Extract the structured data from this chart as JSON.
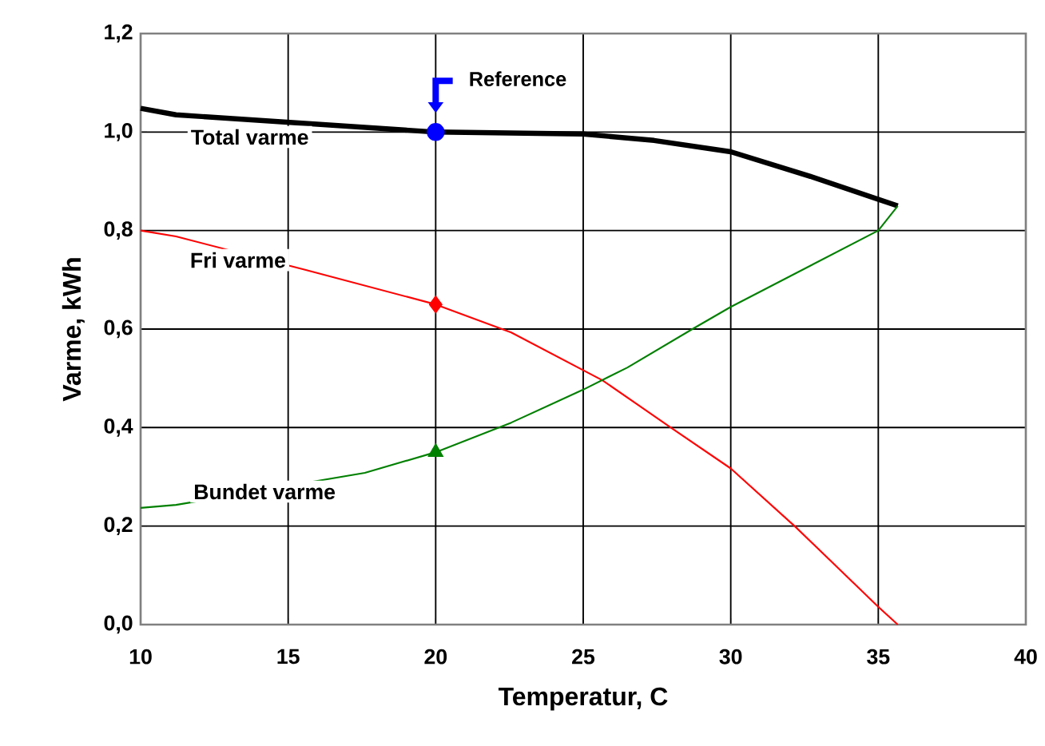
{
  "chart_data": {
    "type": "line",
    "xlabel": "Temperatur, C",
    "ylabel": "Varme, kWh",
    "xlim": [
      10,
      40
    ],
    "xticks": [
      10,
      15,
      20,
      25,
      30,
      35,
      40
    ],
    "ylim": [
      0,
      1.2
    ],
    "yticks": [
      {
        "value": 0,
        "label": "0,0"
      },
      {
        "value": 0.2,
        "label": "0,2"
      },
      {
        "value": 0.4,
        "label": "0,4"
      },
      {
        "value": 0.6,
        "label": "0,6"
      },
      {
        "value": 0.8,
        "label": "0,8"
      },
      {
        "value": 1.0,
        "label": "1,0"
      },
      {
        "value": 1.2,
        "label": "1,2"
      }
    ],
    "grid": true,
    "marker": "none",
    "line_style": "solid",
    "series": [
      {
        "name": "Total varme",
        "color": "#000000",
        "x": [
          10,
          11.2,
          15,
          20,
          25,
          27.4,
          30,
          32.7,
          35.66
        ],
        "values": [
          1.048,
          1.035,
          null,
          1.0,
          0.996,
          0.983,
          0.96,
          0.91,
          0.85
        ]
      },
      {
        "name": "Fri varme",
        "color": "#ff0000",
        "x": [
          10,
          11.2,
          15.6,
          20,
          22.56,
          25.65,
          27.97,
          30,
          32.2,
          35,
          35.66
        ],
        "values": [
          0.8,
          0.788,
          0.72,
          0.65,
          0.593,
          0.496,
          0.4,
          0.317,
          0.198,
          0.036,
          0
        ]
      },
      {
        "name": "Bundet varme",
        "color": "#008000",
        "x": [
          10,
          11.2,
          17.6,
          20,
          22.56,
          25,
          26.5,
          28.7,
          30,
          35,
          35.66
        ],
        "values": [
          0.237,
          0.243,
          0.308,
          0.35,
          0.41,
          0.477,
          0.522,
          0.6,
          0.645,
          0.8,
          0.85
        ]
      },
      {
        "type": "scatter",
        "marker": "circle",
        "color": "#0000ff",
        "x": [
          20
        ],
        "values": [
          1.0
        ]
      },
      {
        "type": "scatter",
        "marker": "diamond",
        "color": "#ff0000",
        "x": [
          20
        ],
        "values": [
          0.65
        ]
      },
      {
        "type": "scatter",
        "marker": "triangle",
        "color": "#008000",
        "x": [
          20
        ],
        "values": [
          0.35
        ]
      }
    ],
    "annotations": [
      {
        "text": "Reference",
        "x": 20,
        "y": 1.0
      }
    ]
  }
}
